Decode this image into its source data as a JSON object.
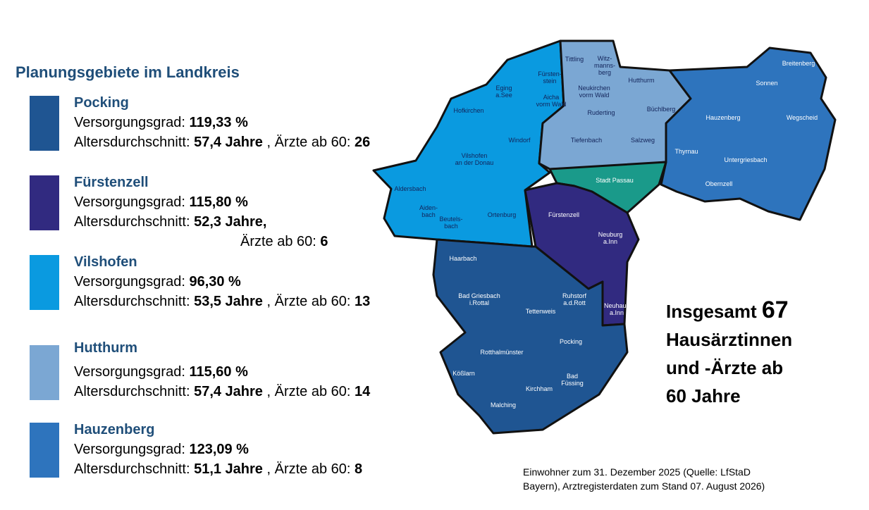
{
  "title": "Planungsgebiete im Landkreis",
  "areas": [
    {
      "name": "Pocking",
      "color": "#1f5592",
      "coverage_label": "Versorgungsgrad:",
      "coverage": "119,33 %",
      "age_label": "Altersdurchschnitt:",
      "age": "57,4 Jahre",
      "doctors_label": ", Ärzte ab 60:",
      "doctors": 26
    },
    {
      "name": "Fürstenzell",
      "color": "#312a80",
      "coverage_label": "Versorgungsgrad:",
      "coverage": "115,80 %",
      "age_label": "Altersdurchschnitt:",
      "age": "52,3 Jahre,",
      "doctors_label": "Ärzte ab 60:",
      "doctors": 6
    },
    {
      "name": "Vilshofen",
      "color": "#0a9ae0",
      "coverage_label": "Versorgungsgrad:",
      "coverage": "96,30 %",
      "age_label": "Altersdurchschnitt:",
      "age": "53,5 Jahre",
      "doctors_label": ", Ärzte ab 60:",
      "doctors": 13
    },
    {
      "name": "Hutthurm",
      "color": "#7ba7d3",
      "coverage_label": "Versorgungsgrad:",
      "coverage": "115,60 %",
      "age_label": "Altersdurchschnitt:",
      "age": "57,4 Jahre",
      "doctors_label": ", Ärzte ab 60:",
      "doctors": 14
    },
    {
      "name": "Hauzenberg",
      "color": "#2e74bd",
      "coverage_label": "Versorgungsgrad:",
      "coverage": "123,09 %",
      "age_label": "Altersdurchschnitt:",
      "age": "51,1 Jahre",
      "doctors_label": ", Ärzte ab 60:",
      "doctors": 8
    }
  ],
  "city": {
    "color": "#1a9a8a"
  },
  "places": [
    {
      "lines": [
        "Eging",
        "a.See"
      ]
    },
    {
      "lines": [
        "Fürsten-",
        "stein"
      ]
    },
    {
      "lines": [
        "Aicha",
        "vorm Wald"
      ]
    },
    {
      "lines": [
        "Hofkirchen"
      ]
    },
    {
      "lines": [
        "Windorf"
      ]
    },
    {
      "lines": [
        "Vilshofen",
        "an der Donau"
      ]
    },
    {
      "lines": [
        "Aldersbach"
      ]
    },
    {
      "lines": [
        "Aiden-",
        "bach"
      ]
    },
    {
      "lines": [
        "Beutels-",
        "bach"
      ]
    },
    {
      "lines": [
        "Ortenburg"
      ]
    },
    {
      "lines": [
        "Tittling"
      ]
    },
    {
      "lines": [
        "Witz-",
        "manns-",
        "berg"
      ]
    },
    {
      "lines": [
        "Neukirchen",
        "vorm Wald"
      ]
    },
    {
      "lines": [
        "Hutthurm"
      ]
    },
    {
      "lines": [
        "Büchlberg"
      ]
    },
    {
      "lines": [
        "Ruderting"
      ]
    },
    {
      "lines": [
        "Tiefenbach"
      ]
    },
    {
      "lines": [
        "Salzweg"
      ]
    },
    {
      "lines": [
        "Breitenberg"
      ]
    },
    {
      "lines": [
        "Sonnen"
      ]
    },
    {
      "lines": [
        "Hauzenberg"
      ]
    },
    {
      "lines": [
        "Wegscheid"
      ]
    },
    {
      "lines": [
        "Thyrnau"
      ]
    },
    {
      "lines": [
        "Untergriesbach"
      ]
    },
    {
      "lines": [
        "Obernzell"
      ]
    },
    {
      "lines": [
        "Stadt Passau"
      ]
    },
    {
      "lines": [
        "Fürstenzell"
      ]
    },
    {
      "lines": [
        "Neuburg",
        "a.Inn"
      ]
    },
    {
      "lines": [
        "Neuhaus",
        "a.Inn"
      ]
    },
    {
      "lines": [
        "Haarbach"
      ]
    },
    {
      "lines": [
        "Bad Griesbach",
        "i.Rottal"
      ]
    },
    {
      "lines": [
        "Tettenweis"
      ]
    },
    {
      "lines": [
        "Ruhstorf",
        "a.d.Rott"
      ]
    },
    {
      "lines": [
        "Rotthalmünster"
      ]
    },
    {
      "lines": [
        "Pocking"
      ]
    },
    {
      "lines": [
        "Kößlarn"
      ]
    },
    {
      "lines": [
        "Bad",
        "Füssing"
      ]
    },
    {
      "lines": [
        "Kirchham"
      ]
    },
    {
      "lines": [
        "Malching"
      ]
    }
  ],
  "total": {
    "prefix": "Insgesamt",
    "number": 67,
    "lines": [
      "Hausärztinnen",
      "und -Ärzte ab",
      "60 Jahre"
    ]
  },
  "footnote": [
    "Einwohner zum 31. Dezember 2025 (Quelle: LfStaD",
    "Bayern), Arztregisterdaten zum Stand 07. August 2026)"
  ]
}
